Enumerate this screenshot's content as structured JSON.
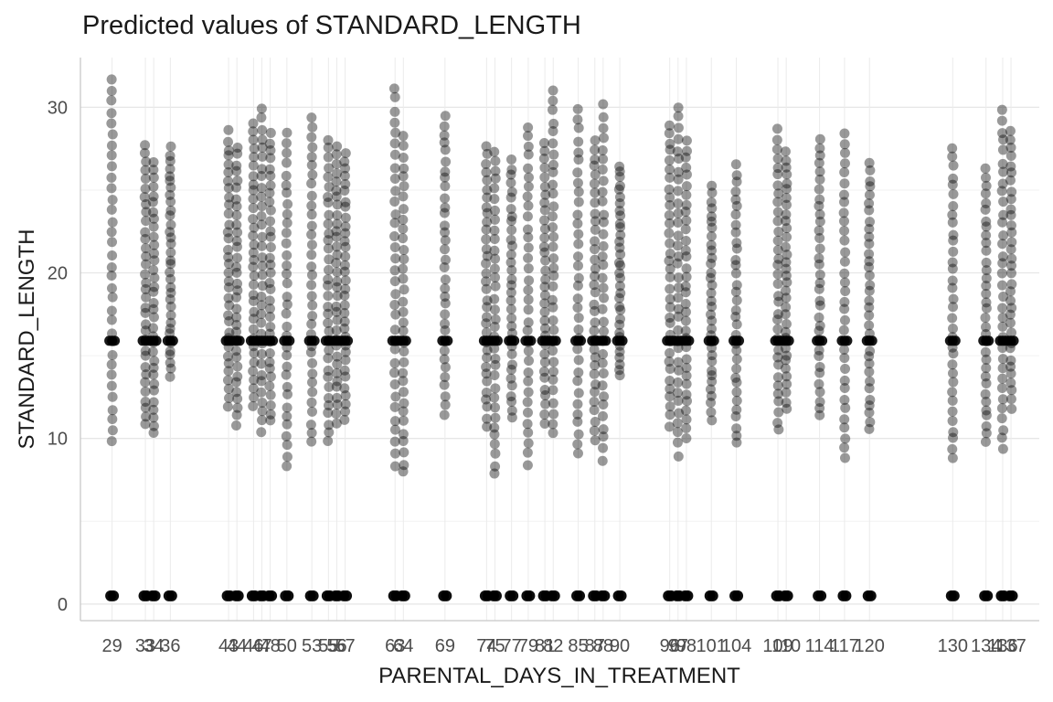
{
  "chart_data": {
    "type": "scatter",
    "title": "Predicted values of STANDARD_LENGTH",
    "xlabel": "PARENTAL_DAYS_IN_TREATMENT",
    "ylabel": "STANDARD_LENGTH",
    "xlim": [
      25.2,
      140.4
    ],
    "ylim": [
      -1.0,
      33.0
    ],
    "y_ticks": [
      0,
      10,
      20,
      30
    ],
    "x_ticks": [
      29,
      33,
      34,
      36,
      43,
      44,
      46,
      47,
      48,
      50,
      53,
      55,
      56,
      57,
      63,
      64,
      69,
      74,
      75,
      77,
      79,
      81,
      82,
      85,
      87,
      88,
      90,
      96,
      97,
      98,
      101,
      104,
      109,
      110,
      114,
      117,
      120,
      130,
      134,
      136,
      137
    ],
    "x_tick_labels": [
      "29",
      "33",
      "34",
      "36",
      "43",
      "44",
      "46",
      "47",
      "48",
      "50",
      "53",
      "55",
      "56",
      "57",
      "63",
      "64",
      "69",
      "74",
      "75",
      "77",
      "79",
      "81",
      "82",
      "85",
      "87",
      "88",
      "90",
      "96",
      "97",
      "98",
      "101",
      "104",
      "109",
      "110",
      "114",
      "117",
      "120",
      "130",
      "134",
      "136",
      "137"
    ],
    "grid": true,
    "point_color": "#000000",
    "point_alpha": 0.4,
    "series": [
      {
        "x": [
          29,
          33,
          34,
          36,
          43,
          44,
          46,
          47,
          48,
          50,
          53,
          55,
          56,
          57,
          63,
          64,
          69,
          74,
          75,
          77,
          79,
          81,
          82,
          85,
          87,
          88,
          90,
          96,
          97,
          98,
          101,
          104,
          109,
          110,
          114,
          117,
          120,
          130,
          134,
          136,
          137
        ],
        "y_low": [
          9.8,
          10.8,
          10.3,
          13.7,
          12.0,
          10.8,
          12.0,
          10.4,
          11.0,
          8.3,
          9.7,
          9.8,
          11.0,
          11.2,
          8.4,
          7.9,
          11.5,
          10.8,
          7.8,
          11.2,
          8.4,
          11.0,
          10.3,
          9.0,
          10.0,
          8.7,
          13.8,
          10.8,
          9.0,
          10.0,
          11.2,
          9.7,
          10.5,
          11.8,
          11.3,
          8.9,
          10.5,
          8.8,
          9.8,
          9.3,
          11.8
        ],
        "y_high": [
          31.7,
          27.7,
          26.7,
          27.6,
          28.5,
          27.6,
          29.0,
          29.9,
          28.4,
          28.4,
          29.5,
          28.0,
          27.6,
          27.3,
          31.2,
          28.2,
          29.5,
          27.6,
          27.4,
          26.8,
          28.9,
          27.8,
          31.0,
          29.9,
          28.0,
          30.1,
          26.5,
          29.0,
          30.0,
          28.0,
          25.2,
          26.5,
          28.6,
          27.3,
          28.1,
          28.3,
          26.6,
          27.5,
          26.2,
          29.8,
          28.5
        ],
        "y_mid": 15.9,
        "y_base": 0.5
      }
    ]
  }
}
